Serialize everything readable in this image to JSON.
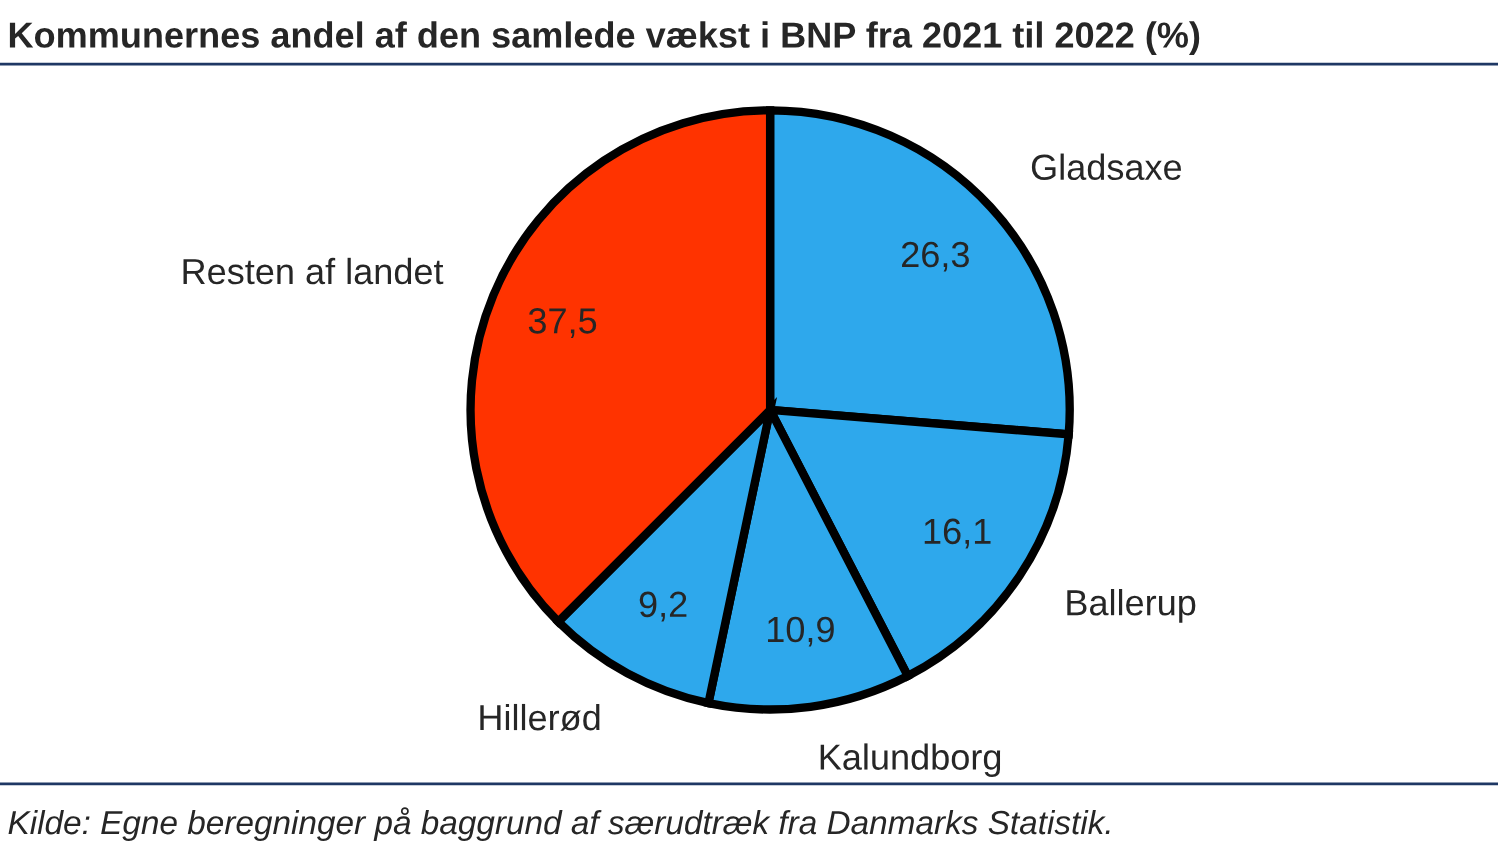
{
  "chart_data": {
    "type": "pie",
    "title": "Kommunernes andel af den samlede vækst i BNP fra 2021 til 2022 (%)",
    "categories": [
      "Gladsaxe",
      "Ballerup",
      "Kalundborg",
      "Hillerød",
      "Resten af landet"
    ],
    "values": [
      26.3,
      16.1,
      10.9,
      9.2,
      37.5
    ],
    "colors": [
      "#2ea8ec",
      "#2ea8ec",
      "#2ea8ec",
      "#2ea8ec",
      "#ff3300"
    ],
    "value_labels": [
      "26,3",
      "16,1",
      "10,9",
      "9,2",
      "37,5"
    ],
    "legend": false,
    "annotations": [
      "Kilde: Egne beregninger på baggrund af særudtræk fra Danmarks Statistik."
    ]
  }
}
